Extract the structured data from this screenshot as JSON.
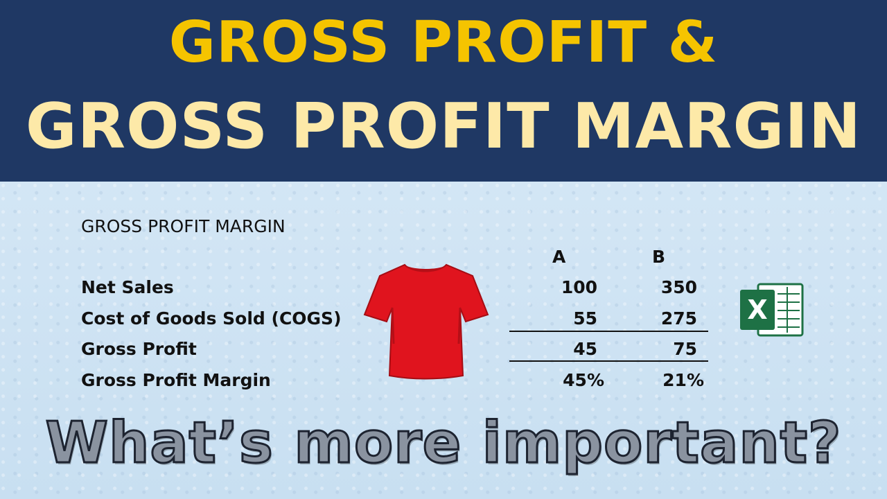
{
  "header": {
    "line1": "GROSS PROFIT &",
    "line2": "GROSS PROFIT MARGIN"
  },
  "table": {
    "title": "GROSS PROFIT MARGIN",
    "columns": [
      "A",
      "B"
    ],
    "rows": [
      {
        "label": "Net Sales",
        "a": "100",
        "b": "350"
      },
      {
        "label": "Cost of Goods Sold (COGS)",
        "a": "55",
        "b": "275"
      },
      {
        "label": "Gross Profit",
        "a": "45",
        "b": "75"
      },
      {
        "label": "Gross Profit Margin",
        "a": "45%",
        "b": "21%"
      }
    ]
  },
  "icons": {
    "tshirt": "tshirt-icon",
    "excel": "excel-icon",
    "excel_letter": "X"
  },
  "question": "What’s more important?",
  "colors": {
    "banner": "#1f3864",
    "title_yellow": "#f5c400",
    "title_light": "#fde9a8",
    "tshirt": "#e0141e",
    "excel_green": "#1e7145"
  }
}
